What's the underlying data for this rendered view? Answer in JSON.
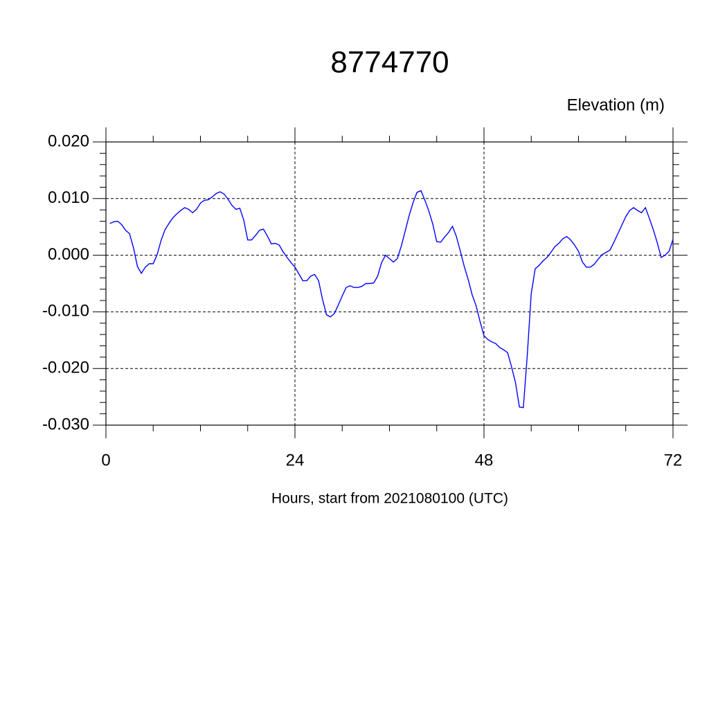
{
  "chart_data": {
    "type": "line",
    "title": "8774770",
    "ylabel": "Elevation (m)",
    "xlabel": "Hours, start from 2021080100 (UTC)",
    "xlim": [
      0,
      72
    ],
    "ylim": [
      -0.03,
      0.02
    ],
    "xticks": [
      0,
      24,
      48,
      72
    ],
    "xminorticks": [
      6,
      12,
      18,
      30,
      36,
      42,
      54,
      60,
      66
    ],
    "yticks": [
      {
        "value": -0.03,
        "label": "-0.030"
      },
      {
        "value": -0.02,
        "label": "-0.020"
      },
      {
        "value": -0.01,
        "label": "-0.010"
      },
      {
        "value": 0,
        "label": "0.000"
      },
      {
        "value": 0.01,
        "label": "0.010"
      },
      {
        "value": 0.02,
        "label": "0.020"
      }
    ],
    "yminorticks": [
      -0.028,
      -0.026,
      -0.024,
      -0.022,
      -0.018,
      -0.016,
      -0.014,
      -0.012,
      -0.008,
      -0.006,
      -0.004,
      -0.002,
      0.002,
      0.004,
      0.006,
      0.008,
      0.012,
      0.014,
      0.016,
      0.018
    ],
    "grid": true,
    "x": [
      0.5,
      1,
      1.5,
      2,
      2.5,
      3,
      3.5,
      4,
      4.5,
      5,
      5.5,
      6,
      6.5,
      7,
      7.5,
      8,
      8.5,
      9,
      9.5,
      10,
      10.5,
      11,
      11.5,
      12,
      12.5,
      13,
      13.5,
      14,
      14.5,
      15,
      15.5,
      16,
      16.5,
      17,
      17.5,
      18,
      18.5,
      19,
      19.5,
      20,
      20.5,
      21,
      21.5,
      22,
      22.5,
      23,
      23.5,
      24,
      24.5,
      25,
      25.5,
      26,
      26.5,
      27,
      27.5,
      28,
      28.5,
      29,
      29.5,
      30,
      30.5,
      31,
      31.5,
      32,
      32.5,
      33,
      33.5,
      34,
      34.5,
      35,
      35.5,
      36,
      36.5,
      37,
      37.5,
      38,
      38.5,
      39,
      39.5,
      40,
      40.5,
      41,
      41.5,
      42,
      42.5,
      43,
      43.5,
      44,
      44.5,
      45,
      45.5,
      46,
      46.5,
      47,
      47.5,
      48,
      48.5,
      49,
      49.5,
      50,
      50.5,
      51,
      51.5,
      52,
      52.5,
      53,
      53.5,
      54,
      54.5,
      55,
      55.5,
      56,
      56.5,
      57,
      57.5,
      58,
      58.5,
      59,
      59.5,
      60,
      60.5,
      61,
      61.5,
      62,
      62.5,
      63,
      63.5,
      64,
      64.5,
      65,
      65.5,
      66,
      66.5,
      67,
      67.5,
      68,
      68.5,
      69,
      69.5,
      70,
      70.5,
      71,
      71.5,
      72
    ],
    "series": [
      {
        "name": "elevation",
        "color": "#0000ff",
        "values": [
          0.0056,
          0.0059,
          0.006,
          0.0054,
          0.0044,
          0.0038,
          0.0013,
          -0.002,
          -0.0032,
          -0.0021,
          -0.0015,
          -0.0015,
          0.0001,
          0.0026,
          0.0045,
          0.0056,
          0.0066,
          0.0073,
          0.0079,
          0.0084,
          0.0081,
          0.0075,
          0.0081,
          0.0092,
          0.0097,
          0.0098,
          0.0103,
          0.0109,
          0.0112,
          0.0108,
          0.0099,
          0.0088,
          0.0081,
          0.0083,
          0.0062,
          0.0027,
          0.0027,
          0.0035,
          0.0044,
          0.0046,
          0.0034,
          0.002,
          0.0021,
          0.0018,
          0.0006,
          -0.0004,
          -0.0013,
          -0.0021,
          -0.0033,
          -0.0045,
          -0.0045,
          -0.0037,
          -0.0034,
          -0.0045,
          -0.0078,
          -0.0105,
          -0.0109,
          -0.0103,
          -0.0088,
          -0.0072,
          -0.0057,
          -0.0054,
          -0.0057,
          -0.0057,
          -0.0055,
          -0.005,
          -0.005,
          -0.0049,
          -0.0037,
          -0.0013,
          0.0,
          -0.0006,
          -0.0012,
          -0.0006,
          0.0016,
          0.0043,
          0.007,
          0.0093,
          0.0111,
          0.0114,
          0.0097,
          0.0078,
          0.0055,
          0.0024,
          0.0023,
          0.0032,
          0.004,
          0.0051,
          0.0033,
          0.0007,
          -0.002,
          -0.0043,
          -0.007,
          -0.0089,
          -0.0117,
          -0.0142,
          -0.0149,
          -0.0153,
          -0.0156,
          -0.0163,
          -0.0167,
          -0.0172,
          -0.0197,
          -0.0225,
          -0.0268,
          -0.0269,
          -0.0176,
          -0.0068,
          -0.0024,
          -0.0018,
          -0.001,
          -0.0004,
          0.0005,
          0.0015,
          0.0021,
          0.0029,
          0.0033,
          0.0027,
          0.0018,
          0.0007,
          -0.0012,
          -0.0021,
          -0.0021,
          -0.0016,
          -0.0007,
          0.0001,
          0.0005,
          0.0009,
          0.0023,
          0.0038,
          0.0053,
          0.0068,
          0.0079,
          0.0084,
          0.0079,
          0.0075,
          0.0084,
          0.0065,
          0.0045,
          0.0022,
          -0.0004,
          0.0,
          0.0007,
          0.0028
        ]
      }
    ]
  }
}
